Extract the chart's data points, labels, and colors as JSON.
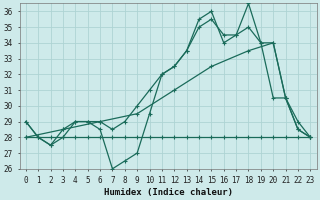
{
  "xlabel": "Humidex (Indice chaleur)",
  "background_color": "#ceeaea",
  "grid_color": "#aed4d4",
  "line_color": "#1a6b5a",
  "xlim": [
    -0.5,
    23.5
  ],
  "ylim": [
    26,
    36.5
  ],
  "yticks": [
    26,
    27,
    28,
    29,
    30,
    31,
    32,
    33,
    34,
    35,
    36
  ],
  "xticks": [
    0,
    1,
    2,
    3,
    4,
    5,
    6,
    7,
    8,
    9,
    10,
    11,
    12,
    13,
    14,
    15,
    16,
    17,
    18,
    19,
    20,
    21,
    22,
    23
  ],
  "series": [
    {
      "x": [
        0,
        1,
        2,
        3,
        4,
        5,
        6,
        7,
        8,
        9,
        10,
        11,
        12,
        13,
        14,
        15,
        16,
        17,
        18,
        19,
        20,
        21,
        22,
        23
      ],
      "y": [
        28,
        28,
        28,
        28,
        28,
        28,
        28,
        28,
        28,
        28,
        28,
        28,
        28,
        28,
        28,
        28,
        28,
        28,
        28,
        28,
        28,
        28,
        28,
        28
      ]
    },
    {
      "x": [
        0,
        1,
        2,
        3,
        4,
        5,
        6,
        7,
        8,
        9,
        10,
        11,
        12,
        13,
        14,
        15,
        16,
        17,
        18,
        19,
        20,
        21,
        22,
        23
      ],
      "y": [
        29,
        28,
        27.5,
        28,
        29,
        29,
        28.5,
        26,
        26.5,
        27,
        29.5,
        32,
        32.5,
        33.5,
        35.5,
        36,
        34,
        34.5,
        36.5,
        34,
        30.5,
        30.5,
        28.5,
        28
      ]
    },
    {
      "x": [
        0,
        1,
        2,
        3,
        4,
        5,
        6,
        7,
        8,
        9,
        10,
        11,
        12,
        13,
        14,
        15,
        16,
        17,
        18,
        19,
        20,
        21,
        22,
        23
      ],
      "y": [
        29,
        28,
        27.5,
        28.5,
        29,
        29,
        29,
        28.5,
        29,
        30,
        31,
        32,
        32.5,
        33.5,
        35,
        35.5,
        34.5,
        34.5,
        35,
        34,
        34,
        30.5,
        28.5,
        28
      ]
    },
    {
      "x": [
        0,
        3,
        6,
        9,
        12,
        15,
        18,
        20,
        21,
        22,
        23
      ],
      "y": [
        28,
        28.5,
        29,
        29.5,
        31,
        32.5,
        33.5,
        34,
        30.5,
        29,
        28
      ]
    }
  ]
}
